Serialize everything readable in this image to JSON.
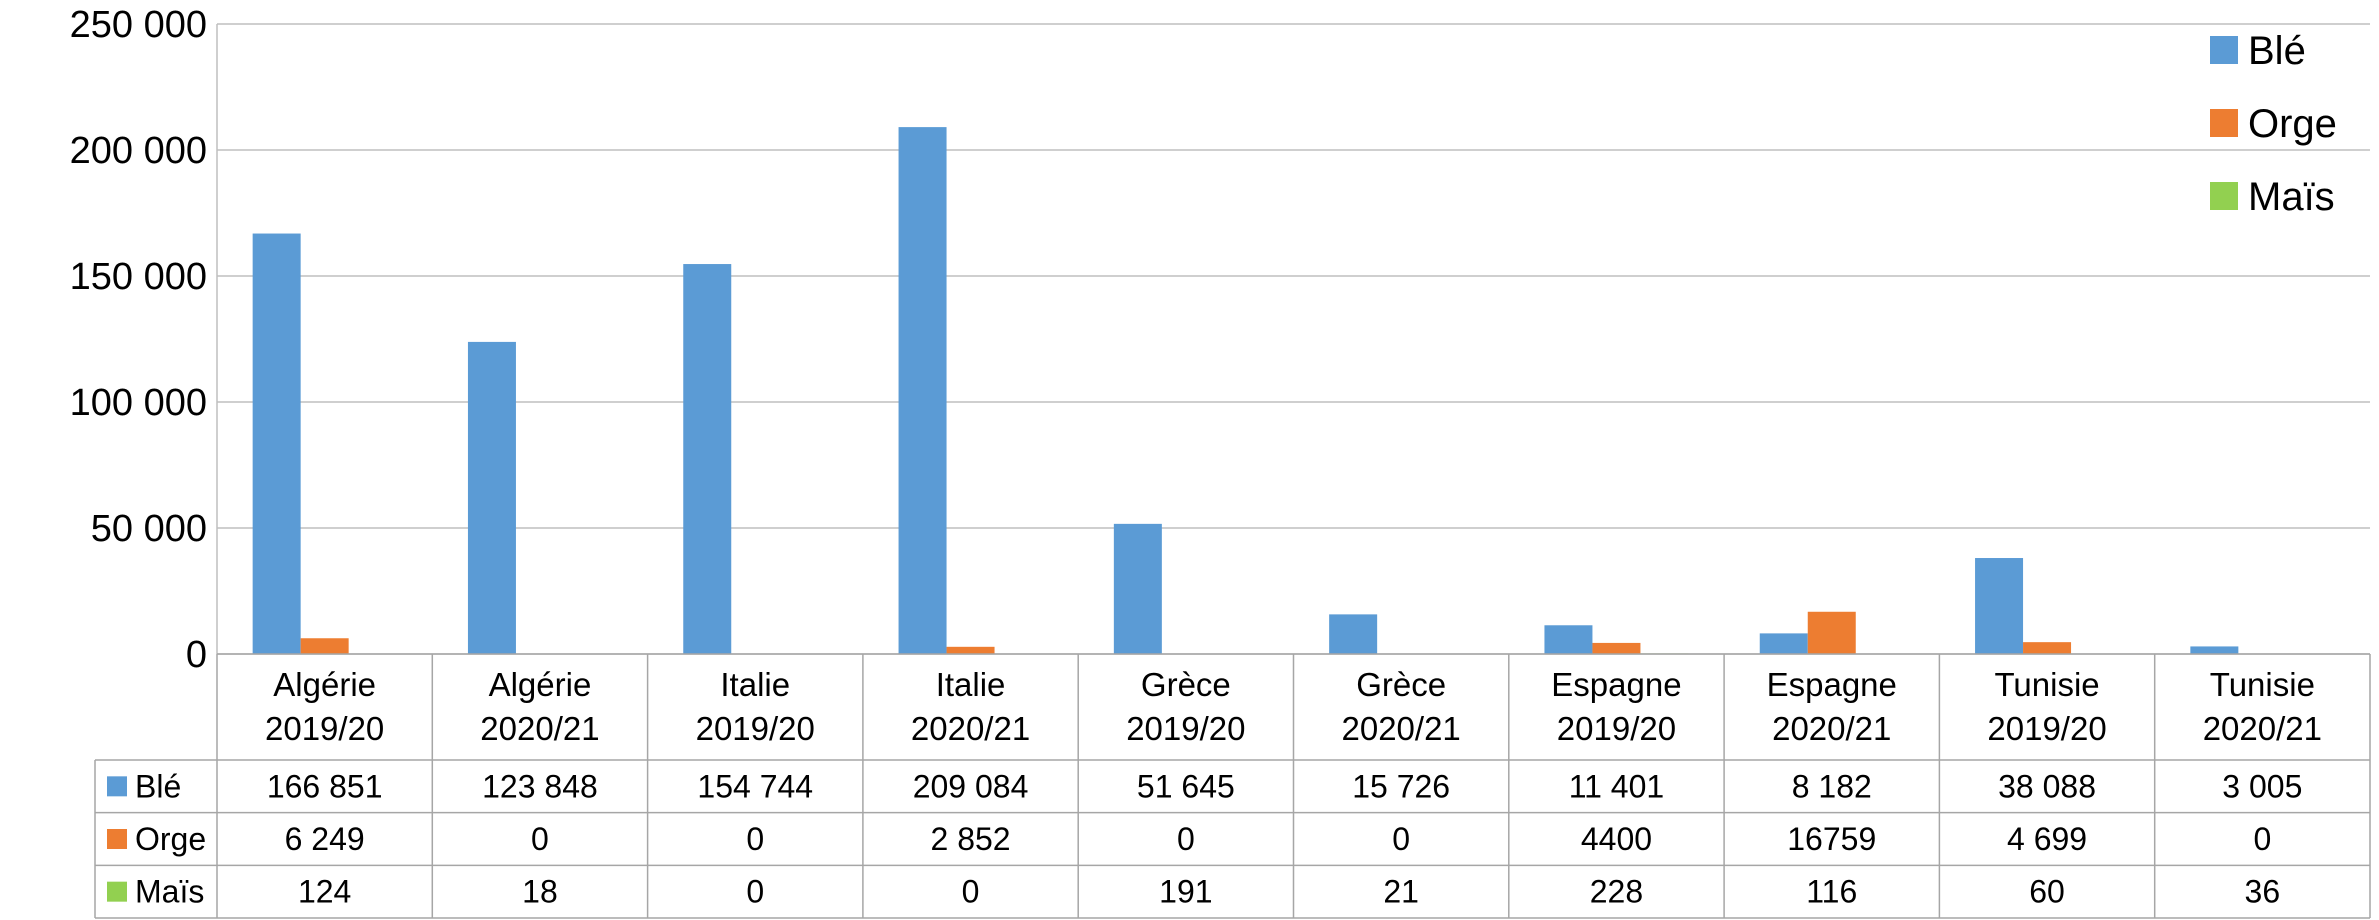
{
  "chart_data": {
    "type": "bar",
    "title": "",
    "xlabel": "",
    "ylabel": "",
    "ylim": [
      0,
      250000
    ],
    "yticks": [
      "0",
      "50 000",
      "100 000",
      "150 000",
      "200 000",
      "250 000"
    ],
    "grid": true,
    "legend_position": "top-right",
    "categories": [
      [
        "Algérie",
        "2019/20"
      ],
      [
        "Algérie",
        "2020/21"
      ],
      [
        "Italie",
        "2019/20"
      ],
      [
        "Italie",
        "2020/21"
      ],
      [
        "Grèce",
        "2019/20"
      ],
      [
        "Grèce",
        "2020/21"
      ],
      [
        "Espagne",
        "2019/20"
      ],
      [
        "Espagne",
        "2020/21"
      ],
      [
        "Tunisie",
        "2019/20"
      ],
      [
        "Tunisie",
        "2020/21"
      ]
    ],
    "series": [
      {
        "name": "Blé",
        "color": "#5B9BD5",
        "values": [
          166851,
          123848,
          154744,
          209084,
          51645,
          15726,
          11401,
          8182,
          38088,
          3005
        ],
        "labels": [
          "166 851",
          "123 848",
          "154 744",
          "209 084",
          "51 645",
          "15 726",
          "11 401",
          "8 182",
          "38 088",
          "3 005"
        ]
      },
      {
        "name": "Orge",
        "color": "#ED7D31",
        "values": [
          6249,
          0,
          0,
          2852,
          0,
          0,
          4400,
          16759,
          4699,
          0
        ],
        "labels": [
          "6 249",
          "0",
          "0",
          "2 852",
          "0",
          "0",
          "4400",
          "16759",
          "4 699",
          "0"
        ]
      },
      {
        "name": "Maïs",
        "color": "#92D050",
        "values": [
          124,
          18,
          0,
          0,
          191,
          21,
          228,
          116,
          60,
          36
        ],
        "labels": [
          "124",
          "18",
          "0",
          "0",
          "191",
          "21",
          "228",
          "116",
          "60",
          "36"
        ]
      }
    ]
  }
}
